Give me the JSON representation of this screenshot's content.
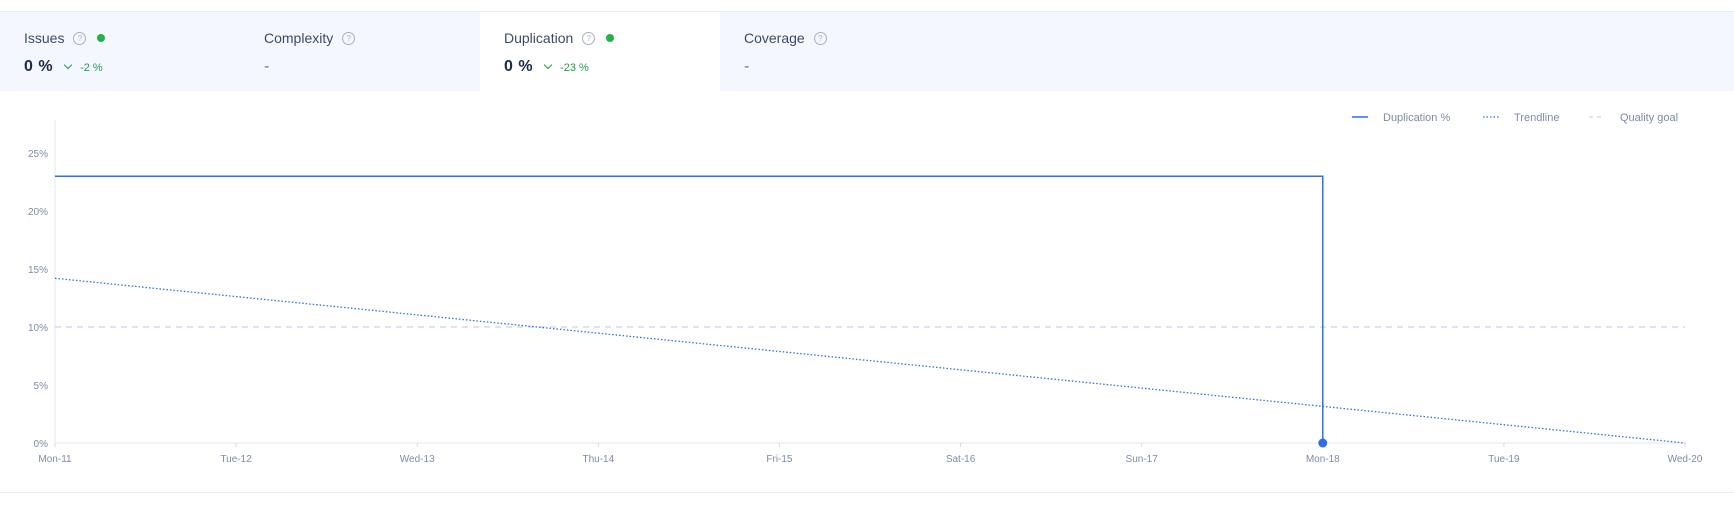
{
  "metrics": [
    {
      "title": "Issues",
      "value": "0 %",
      "delta": "-2 %",
      "status": "good"
    },
    {
      "title": "Complexity",
      "value": "-"
    },
    {
      "title": "Duplication",
      "value": "0 %",
      "delta": "-23 %",
      "status": "good",
      "active": true
    },
    {
      "title": "Coverage",
      "value": "-"
    }
  ],
  "help_icon": "?",
  "colors": {
    "accent": "#2f6fe6",
    "good": "#22b14c",
    "goal": "#c6d2ea"
  },
  "chart_data": {
    "type": "line",
    "x": [
      "Mon-11",
      "Tue-12",
      "Wed-13",
      "Thu-14",
      "Fri-15",
      "Sat-16",
      "Sun-17",
      "Mon-18",
      "Tue-19",
      "Wed-20"
    ],
    "ylim": [
      0,
      25
    ],
    "yticks": [
      "0%",
      "5%",
      "10%",
      "15%",
      "20%",
      "25%"
    ],
    "series": [
      {
        "name": "Duplication %",
        "style": "solid",
        "points": [
          [
            "Mon-11",
            23
          ],
          [
            "Mon-18",
            23
          ],
          [
            "Mon-18",
            0
          ]
        ]
      },
      {
        "name": "Trendline",
        "style": "dotted",
        "points": [
          [
            "Mon-11",
            14.2
          ],
          [
            "Wed-20",
            0
          ]
        ]
      },
      {
        "name": "Quality goal",
        "style": "dashed",
        "points": [
          [
            "Mon-11",
            10
          ],
          [
            "Wed-20",
            10
          ]
        ]
      }
    ],
    "legend_position": "top-right",
    "grid": false
  }
}
